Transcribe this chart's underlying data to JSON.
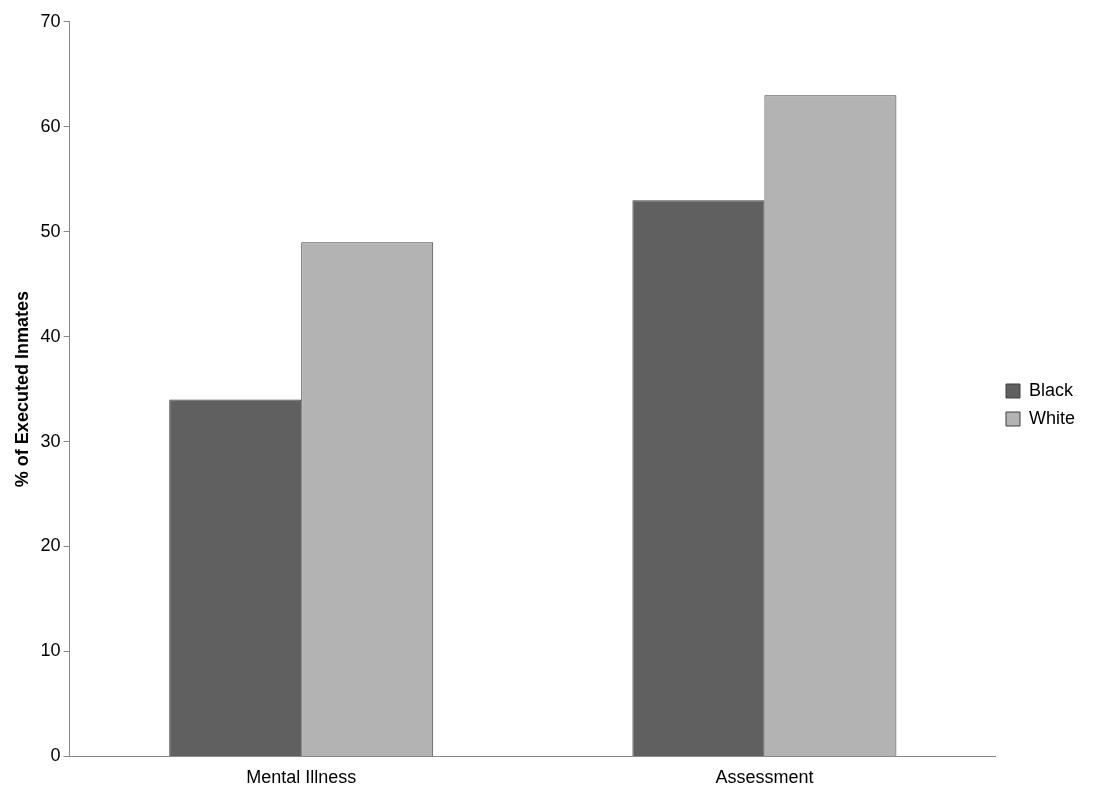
{
  "chart_data": {
    "type": "bar",
    "ylabel": "% of Executed Inmates",
    "categories": [
      "Mental Illness",
      "Assessment"
    ],
    "series": [
      {
        "name": "Black",
        "color": "#606060",
        "values": [
          34,
          53
        ]
      },
      {
        "name": "White",
        "color": "#b3b3b3",
        "values": [
          49,
          63
        ]
      }
    ],
    "ylim": [
      0,
      70
    ],
    "yticks": [
      0,
      10,
      20,
      30,
      40,
      50,
      60,
      70
    ],
    "legend": "right"
  }
}
